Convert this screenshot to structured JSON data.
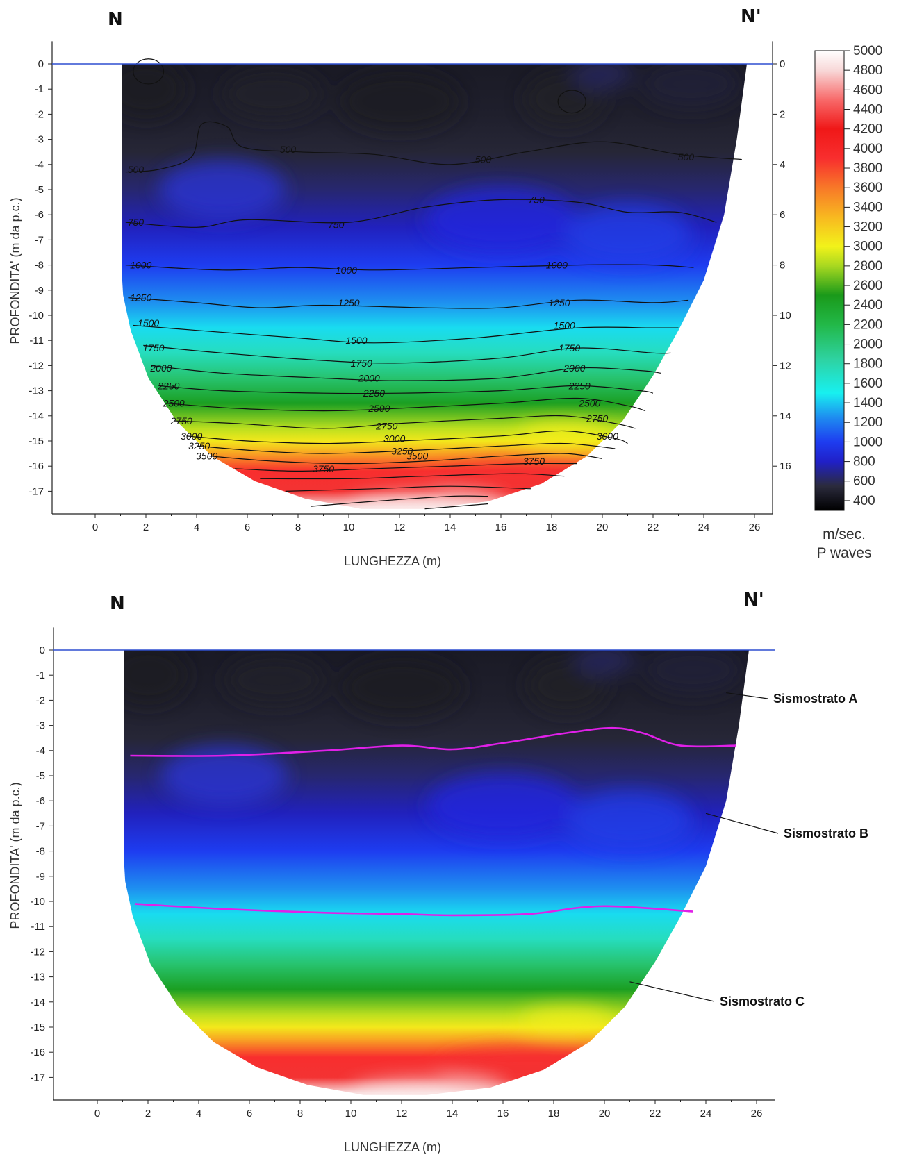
{
  "chart_data": [
    {
      "type": "heatmap",
      "title": "",
      "corner_left": "N",
      "corner_right": "N'",
      "xlabel": "LUNGHEZZA (m)",
      "ylabel": "PROFONDITA' (m da p.c.)",
      "xlim": [
        -1.7,
        26.8
      ],
      "ylim": [
        -17.9,
        0.9
      ],
      "x_ticks": [
        0,
        2,
        4,
        6,
        8,
        10,
        12,
        14,
        16,
        18,
        20,
        22,
        24,
        26
      ],
      "y_ticks": [
        0,
        -1,
        -2,
        -3,
        -4,
        -5,
        -6,
        -7,
        -8,
        -9,
        -10,
        -11,
        -12,
        -13,
        -14,
        -15,
        -16,
        -17
      ],
      "right_axis_ticks": [
        0,
        2,
        4,
        6,
        8,
        10,
        12,
        14,
        16
      ],
      "contour_levels": [
        500,
        750,
        1000,
        1250,
        1500,
        1750,
        2000,
        2250,
        2500,
        2750,
        3000,
        3250,
        3500,
        3750
      ],
      "contours": [
        {
          "level": 500,
          "points": [
            [
              1.2,
              -4.3
            ],
            [
              2.5,
              -4.2
            ],
            [
              3.8,
              -3.7
            ],
            [
              4.2,
              -2.4
            ],
            [
              5.2,
              -2.5
            ],
            [
              5.8,
              -3.3
            ],
            [
              8,
              -3.5
            ],
            [
              11,
              -3.6
            ],
            [
              14,
              -4.0
            ],
            [
              17,
              -3.5
            ],
            [
              20,
              -3.1
            ],
            [
              23,
              -3.6
            ],
            [
              25.5,
              -3.8
            ]
          ],
          "labels": [
            [
              1.6,
              -4.2
            ],
            [
              7.6,
              -3.4
            ],
            [
              15.3,
              -3.8
            ],
            [
              23.3,
              -3.7
            ]
          ]
        },
        {
          "level": 750,
          "points": [
            [
              1.2,
              -6.3
            ],
            [
              4,
              -6.5
            ],
            [
              6,
              -6.2
            ],
            [
              10,
              -6.3
            ],
            [
              13,
              -5.7
            ],
            [
              16,
              -5.4
            ],
            [
              19,
              -5.5
            ],
            [
              21,
              -5.9
            ],
            [
              23,
              -5.9
            ],
            [
              24.5,
              -6.3
            ]
          ],
          "labels": [
            [
              1.6,
              -6.3
            ],
            [
              9.5,
              -6.4
            ],
            [
              17.4,
              -5.4
            ]
          ]
        },
        {
          "level": 1000,
          "points": [
            [
              1.2,
              -8.0
            ],
            [
              5,
              -8.2
            ],
            [
              8,
              -8.1
            ],
            [
              11,
              -8.2
            ],
            [
              15,
              -8.1
            ],
            [
              19,
              -8.0
            ],
            [
              22,
              -8.0
            ],
            [
              23.6,
              -8.1
            ]
          ],
          "labels": [
            [
              1.8,
              -8.0
            ],
            [
              9.9,
              -8.2
            ],
            [
              18.2,
              -8.0
            ]
          ]
        },
        {
          "level": 1250,
          "points": [
            [
              1.3,
              -9.3
            ],
            [
              4,
              -9.5
            ],
            [
              6.5,
              -9.7
            ],
            [
              9,
              -9.6
            ],
            [
              13,
              -9.7
            ],
            [
              16,
              -9.7
            ],
            [
              19,
              -9.4
            ],
            [
              22,
              -9.5
            ],
            [
              23.4,
              -9.4
            ]
          ],
          "labels": [
            [
              1.8,
              -9.3
            ],
            [
              10,
              -9.5
            ],
            [
              18.3,
              -9.5
            ]
          ]
        },
        {
          "level": 1500,
          "points": [
            [
              1.5,
              -10.4
            ],
            [
              4,
              -10.6
            ],
            [
              8,
              -10.9
            ],
            [
              11,
              -11.1
            ],
            [
              15,
              -10.9
            ],
            [
              19,
              -10.5
            ],
            [
              22,
              -10.5
            ],
            [
              23,
              -10.5
            ]
          ],
          "labels": [
            [
              2.1,
              -10.3
            ],
            [
              10.3,
              -11.0
            ],
            [
              18.5,
              -10.4
            ]
          ]
        },
        {
          "level": 1750,
          "points": [
            [
              1.9,
              -11.2
            ],
            [
              5,
              -11.5
            ],
            [
              9,
              -11.8
            ],
            [
              12,
              -11.9
            ],
            [
              16,
              -11.7
            ],
            [
              19,
              -11.3
            ],
            [
              22,
              -11.5
            ],
            [
              22.7,
              -11.5
            ]
          ],
          "labels": [
            [
              2.3,
              -11.3
            ],
            [
              10.5,
              -11.9
            ],
            [
              18.7,
              -11.3
            ]
          ]
        },
        {
          "level": 2000,
          "points": [
            [
              2.2,
              -12.0
            ],
            [
              5,
              -12.3
            ],
            [
              9,
              -12.5
            ],
            [
              12,
              -12.6
            ],
            [
              16,
              -12.5
            ],
            [
              19,
              -12.1
            ],
            [
              21.5,
              -12.2
            ],
            [
              22.3,
              -12.3
            ]
          ],
          "labels": [
            [
              2.6,
              -12.1
            ],
            [
              10.8,
              -12.5
            ],
            [
              18.9,
              -12.1
            ]
          ]
        },
        {
          "level": 2250,
          "points": [
            [
              2.5,
              -12.8
            ],
            [
              5,
              -13.0
            ],
            [
              9,
              -13.1
            ],
            [
              12,
              -13.1
            ],
            [
              16,
              -13.0
            ],
            [
              19,
              -12.8
            ],
            [
              21.5,
              -13.0
            ],
            [
              22.0,
              -13.1
            ]
          ],
          "labels": [
            [
              2.9,
              -12.8
            ],
            [
              11,
              -13.1
            ],
            [
              19.1,
              -12.8
            ]
          ]
        },
        {
          "level": 2500,
          "points": [
            [
              2.8,
              -13.5
            ],
            [
              5.5,
              -13.7
            ],
            [
              9,
              -13.8
            ],
            [
              12,
              -13.7
            ],
            [
              16,
              -13.5
            ],
            [
              19,
              -13.3
            ],
            [
              21,
              -13.6
            ],
            [
              21.7,
              -13.8
            ]
          ],
          "labels": [
            [
              3.1,
              -13.5
            ],
            [
              11.2,
              -13.7
            ],
            [
              19.5,
              -13.5
            ]
          ]
        },
        {
          "level": 2750,
          "points": [
            [
              3.1,
              -14.2
            ],
            [
              5.5,
              -14.3
            ],
            [
              9,
              -14.5
            ],
            [
              12,
              -14.3
            ],
            [
              16,
              -14.1
            ],
            [
              18.5,
              -14.0
            ],
            [
              20.5,
              -14.3
            ],
            [
              21.3,
              -14.5
            ]
          ],
          "labels": [
            [
              3.4,
              -14.2
            ],
            [
              11.5,
              -14.4
            ],
            [
              19.8,
              -14.1
            ]
          ]
        },
        {
          "level": 3000,
          "points": [
            [
              3.6,
              -14.8
            ],
            [
              6,
              -15.0
            ],
            [
              9,
              -15.1
            ],
            [
              12,
              -15.0
            ],
            [
              16,
              -14.8
            ],
            [
              18.5,
              -14.6
            ],
            [
              20.5,
              -14.9
            ],
            [
              21.0,
              -15.1
            ]
          ],
          "labels": [
            [
              3.8,
              -14.8
            ],
            [
              11.8,
              -14.9
            ],
            [
              20.2,
              -14.8
            ]
          ]
        },
        {
          "level": 3250,
          "points": [
            [
              4.0,
              -15.2
            ],
            [
              6.5,
              -15.4
            ],
            [
              9,
              -15.5
            ],
            [
              12,
              -15.4
            ],
            [
              16,
              -15.2
            ],
            [
              18.5,
              -15.1
            ],
            [
              20.5,
              -15.3
            ]
          ],
          "labels": [
            [
              4.1,
              -15.2
            ],
            [
              12.1,
              -15.4
            ]
          ]
        },
        {
          "level": 3500,
          "points": [
            [
              4.5,
              -15.6
            ],
            [
              7,
              -15.8
            ],
            [
              10,
              -15.9
            ],
            [
              13,
              -15.8
            ],
            [
              16,
              -15.6
            ],
            [
              18.5,
              -15.5
            ],
            [
              20,
              -15.7
            ]
          ],
          "labels": [
            [
              4.4,
              -15.6
            ],
            [
              12.7,
              -15.6
            ]
          ]
        },
        {
          "level": 3750,
          "points": [
            [
              5.5,
              -16.1
            ],
            [
              8,
              -16.2
            ],
            [
              11,
              -16.1
            ],
            [
              14,
              -16.0
            ],
            [
              17,
              -15.9
            ],
            [
              19,
              -15.9
            ]
          ],
          "labels": [
            [
              9.0,
              -16.1
            ],
            [
              17.3,
              -15.8
            ]
          ]
        },
        {
          "level": null,
          "points": [
            [
              6.5,
              -16.5
            ],
            [
              10,
              -16.5
            ],
            [
              13,
              -16.4
            ],
            [
              16.5,
              -16.3
            ],
            [
              18.5,
              -16.4
            ]
          ],
          "labels": []
        },
        {
          "level": null,
          "points": [
            [
              7.5,
              -17.0
            ],
            [
              11,
              -16.9
            ],
            [
              14,
              -16.8
            ],
            [
              17.2,
              -16.9
            ]
          ],
          "labels": []
        },
        {
          "level": null,
          "points": [
            [
              8.5,
              -17.6
            ],
            [
              11,
              -17.4
            ],
            [
              14,
              -17.2
            ],
            [
              15.5,
              -17.2
            ]
          ],
          "labels": []
        },
        {
          "level": null,
          "points": [
            [
              13.0,
              -17.7
            ],
            [
              15.5,
              -17.5
            ]
          ],
          "labels": []
        }
      ],
      "closed_contours": [
        {
          "level": 500,
          "center": [
            18.8,
            -1.5
          ],
          "radius": [
            0.55,
            0.45
          ]
        },
        {
          "level": 500,
          "center": [
            2.1,
            -0.3
          ],
          "radius": [
            0.6,
            0.5
          ]
        }
      ]
    },
    {
      "type": "heatmap",
      "title": "",
      "corner_left": "N",
      "corner_right": "N'",
      "xlabel": "LUNGHEZZA (m)",
      "ylabel": "PROFONDITA' (m da p.c.)",
      "xlim": [
        -1.7,
        26.8
      ],
      "ylim": [
        -17.9,
        0.9
      ],
      "x_ticks": [
        0,
        2,
        4,
        6,
        8,
        10,
        12,
        14,
        16,
        18,
        20,
        22,
        24,
        26
      ],
      "y_ticks": [
        0,
        -1,
        -2,
        -3,
        -4,
        -5,
        -6,
        -7,
        -8,
        -9,
        -10,
        -11,
        -12,
        -13,
        -14,
        -15,
        -16,
        -17
      ],
      "boundaries": [
        {
          "color": "#e020e8",
          "points": [
            [
              1.3,
              -4.2
            ],
            [
              5,
              -4.2
            ],
            [
              9,
              -4.0
            ],
            [
              12,
              -3.8
            ],
            [
              14,
              -3.95
            ],
            [
              16,
              -3.7
            ],
            [
              18.5,
              -3.3
            ],
            [
              20.3,
              -3.1
            ],
            [
              21.5,
              -3.3
            ],
            [
              23,
              -3.8
            ],
            [
              25.2,
              -3.8
            ]
          ]
        },
        {
          "color": "#e020e8",
          "points": [
            [
              1.5,
              -10.1
            ],
            [
              5,
              -10.3
            ],
            [
              9,
              -10.45
            ],
            [
              12,
              -10.5
            ],
            [
              14,
              -10.55
            ],
            [
              17,
              -10.5
            ],
            [
              19,
              -10.25
            ],
            [
              20.5,
              -10.2
            ],
            [
              23.5,
              -10.4
            ]
          ]
        }
      ],
      "layers": [
        {
          "label": "Sismostrato A",
          "point": [
            24.8,
            -1.7
          ]
        },
        {
          "label": "Sismostrato B",
          "point": [
            24.0,
            -6.5
          ]
        },
        {
          "label": "Sismostrato C",
          "point": [
            21.0,
            -13.2
          ]
        }
      ]
    }
  ],
  "colorbar": {
    "ticks": [
      5000,
      4800,
      4600,
      4400,
      4200,
      4000,
      3800,
      3600,
      3400,
      3200,
      3000,
      2800,
      2600,
      2400,
      2200,
      2000,
      1800,
      1600,
      1400,
      1200,
      1000,
      800,
      600,
      400
    ],
    "range": [
      300,
      5000
    ],
    "unit_line1": "m/sec.",
    "unit_line2": "P waves",
    "color_stops": [
      {
        "value": 300,
        "color": "#000000"
      },
      {
        "value": 550,
        "color": "#2b2b3d"
      },
      {
        "value": 800,
        "color": "#2020c8"
      },
      {
        "value": 1000,
        "color": "#1e3cf0"
      },
      {
        "value": 1250,
        "color": "#1e8cf0"
      },
      {
        "value": 1500,
        "color": "#18f0f0"
      },
      {
        "value": 1850,
        "color": "#2ed2a0"
      },
      {
        "value": 2200,
        "color": "#22b848"
      },
      {
        "value": 2500,
        "color": "#1a9a1a"
      },
      {
        "value": 2800,
        "color": "#a8d820"
      },
      {
        "value": 3000,
        "color": "#f2f21a"
      },
      {
        "value": 3300,
        "color": "#f8b820"
      },
      {
        "value": 3600,
        "color": "#f87828"
      },
      {
        "value": 3900,
        "color": "#f82e2e"
      },
      {
        "value": 4200,
        "color": "#f01818"
      },
      {
        "value": 4500,
        "color": "#f86a6a"
      },
      {
        "value": 4800,
        "color": "#f8d8d8"
      },
      {
        "value": 5000,
        "color": "#ffffff"
      }
    ]
  }
}
